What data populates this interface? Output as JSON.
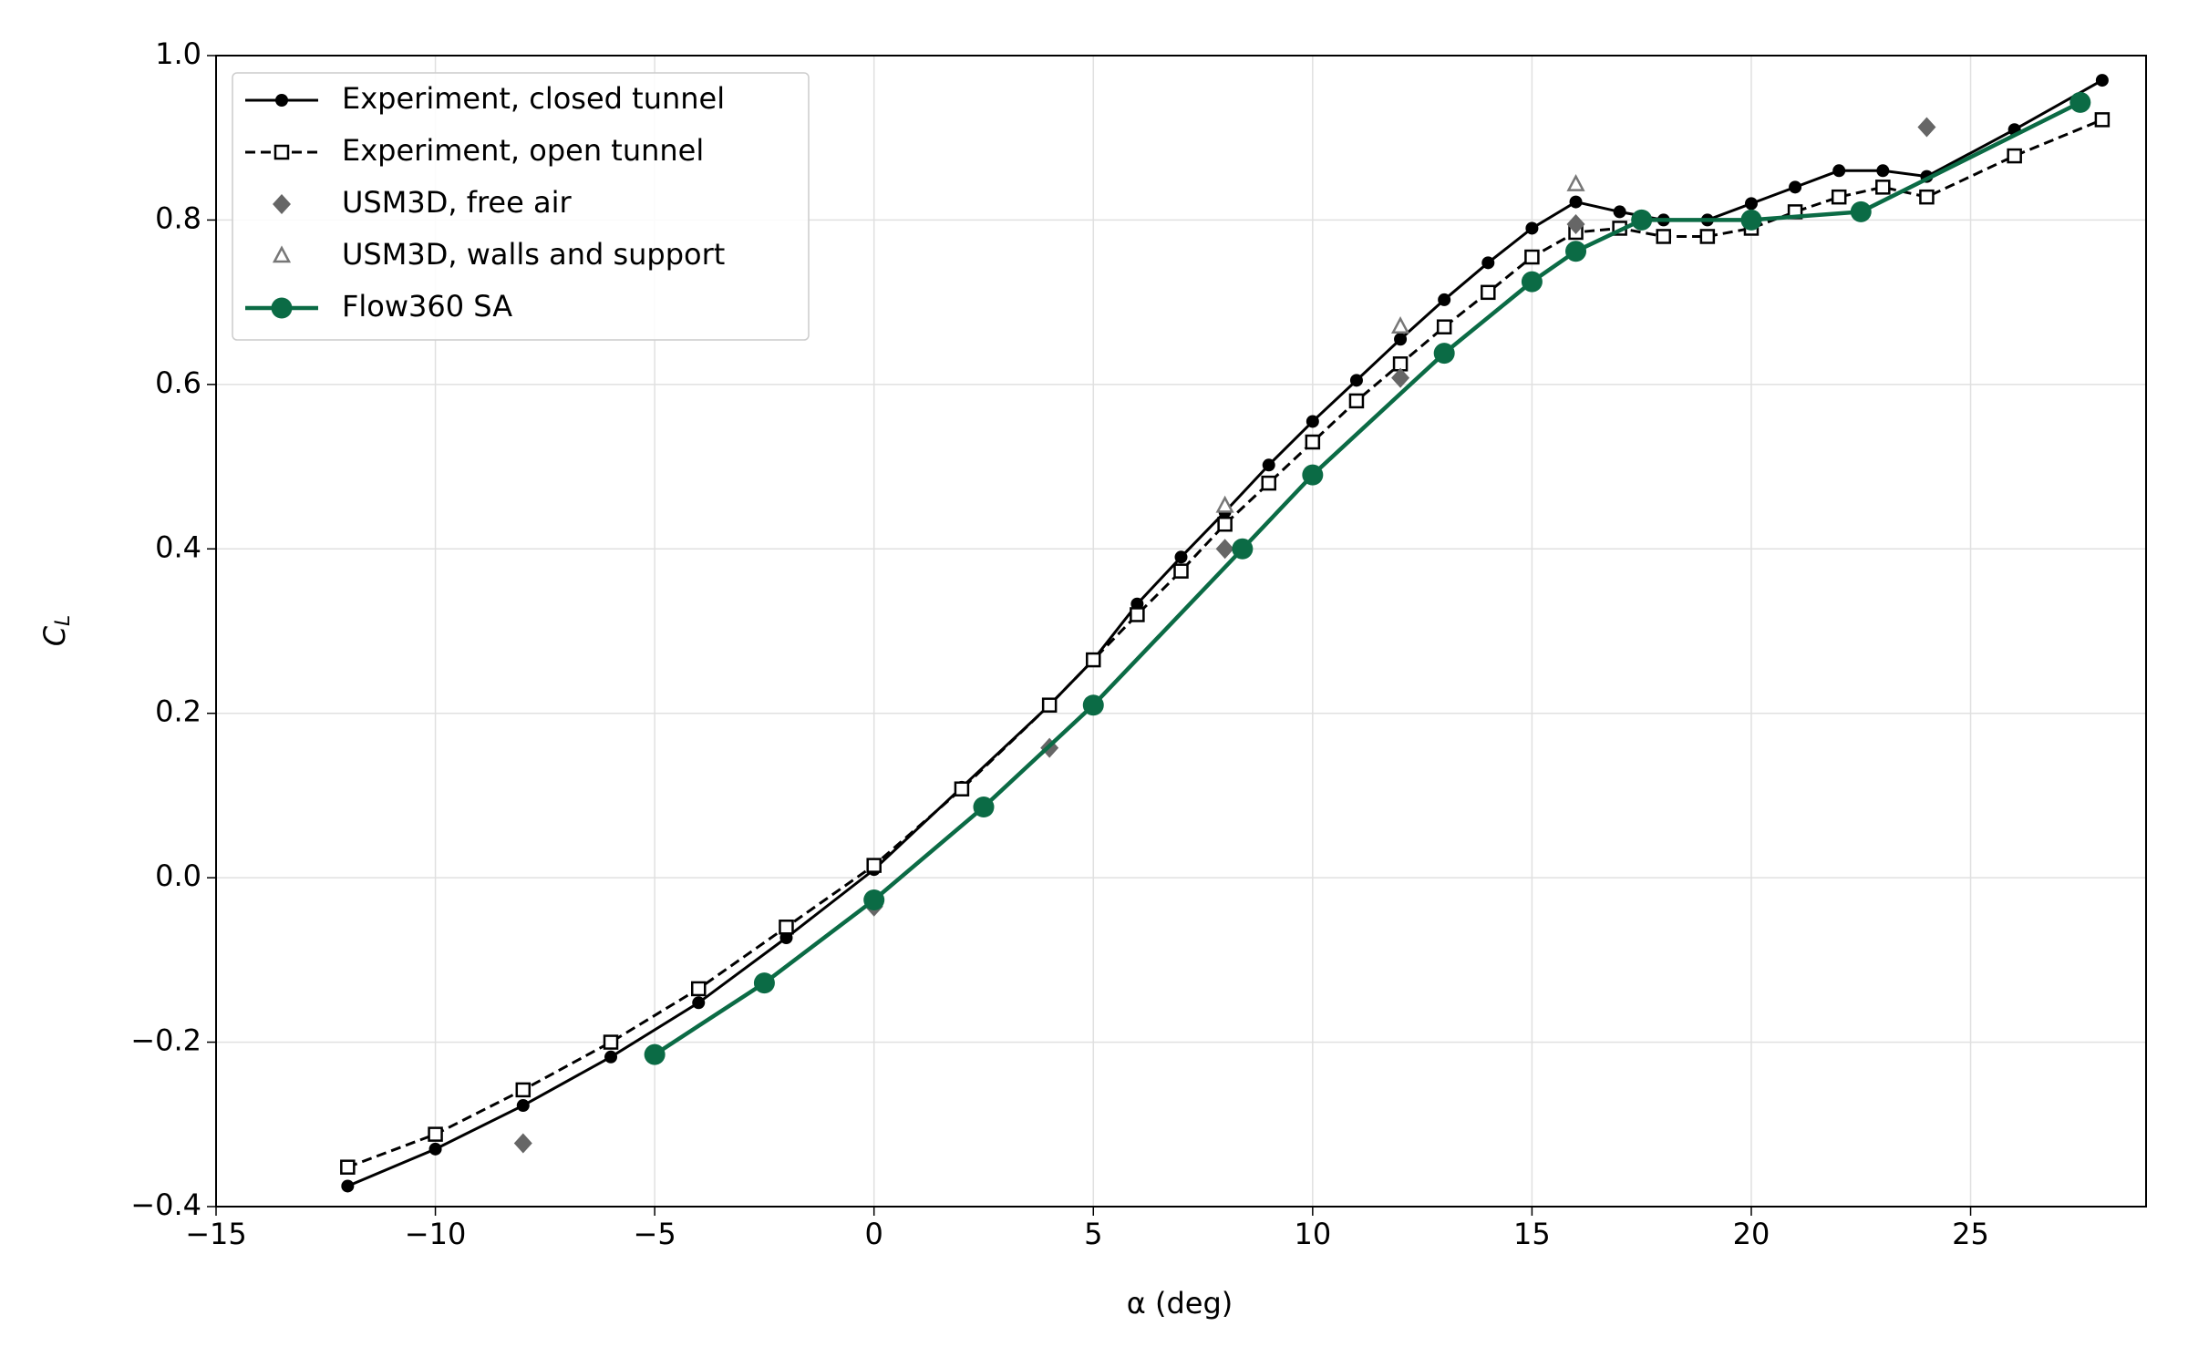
{
  "chart_data": {
    "type": "line",
    "xlabel": "α (deg)",
    "ylabel": "C",
    "ylabel_subscript": "L",
    "xlim": [
      -15,
      29
    ],
    "ylim": [
      -0.4,
      1.0
    ],
    "xticks": [
      {
        "value": -15,
        "label": "−15"
      },
      {
        "value": -10,
        "label": "−10"
      },
      {
        "value": -5,
        "label": "−5"
      },
      0,
      5,
      10,
      15,
      20,
      25
    ],
    "yticks": [
      {
        "value": -0.4,
        "label": "−0.4"
      },
      {
        "value": -0.2,
        "label": "−0.2"
      },
      {
        "value": 0,
        "label": "0.0"
      },
      0.2,
      0.4,
      0.6,
      0.8,
      {
        "value": 1.0,
        "label": "1.0"
      }
    ],
    "grid": true,
    "legend": "upper left",
    "series": [
      {
        "name": "Experiment, closed tunnel",
        "color": "#000000",
        "marker": "circle",
        "linestyle": "solid",
        "x": [
          -12,
          -10,
          -8,
          -6,
          -4,
          -2,
          0,
          2,
          4,
          5,
          6,
          7,
          8,
          9,
          10,
          11,
          12,
          13,
          14,
          15,
          16,
          17,
          18,
          19,
          20,
          21,
          22,
          23,
          24,
          26,
          28
        ],
        "values": [
          -0.375,
          -0.33,
          -0.277,
          -0.218,
          -0.152,
          -0.073,
          0.01,
          0.11,
          0.21,
          0.265,
          0.333,
          0.39,
          0.445,
          0.502,
          0.555,
          0.605,
          0.655,
          0.703,
          0.748,
          0.79,
          0.822,
          0.81,
          0.8,
          0.8,
          0.82,
          0.84,
          0.86,
          0.86,
          0.853,
          0.91,
          0.97
        ]
      },
      {
        "name": "Experiment, open tunnel",
        "color": "#000000",
        "marker": "square-open",
        "linestyle": "dashed",
        "x": [
          -12,
          -10,
          -8,
          -6,
          -4,
          -2,
          0,
          2,
          4,
          5,
          6,
          7,
          8,
          9,
          10,
          11,
          12,
          13,
          14,
          15,
          16,
          17,
          18,
          19,
          20,
          21,
          22,
          23,
          24,
          26,
          28
        ],
        "values": [
          -0.352,
          -0.312,
          -0.258,
          -0.2,
          -0.135,
          -0.06,
          0.015,
          0.108,
          0.21,
          0.265,
          0.32,
          0.373,
          0.43,
          0.48,
          0.53,
          0.58,
          0.625,
          0.67,
          0.712,
          0.755,
          0.785,
          0.79,
          0.78,
          0.78,
          0.79,
          0.81,
          0.828,
          0.84,
          0.828,
          0.878,
          0.922
        ]
      },
      {
        "name": "USM3D, free air",
        "color": "#666666",
        "marker": "diamond",
        "linestyle": "none",
        "x": [
          -8,
          0,
          4,
          8,
          12,
          16,
          24
        ],
        "values": [
          -0.323,
          -0.035,
          0.158,
          0.4,
          0.608,
          0.795,
          0.913
        ]
      },
      {
        "name": "USM3D, walls and support",
        "color": "#777777",
        "marker": "triangle-open",
        "linestyle": "none",
        "x": [
          8,
          12,
          16
        ],
        "values": [
          0.452,
          0.67,
          0.843
        ]
      },
      {
        "name": "Flow360 SA",
        "color": "#0b6b45",
        "marker": "circle-large",
        "linestyle": "solid-thick",
        "x": [
          -5,
          -2.5,
          0,
          2.5,
          5,
          8.4,
          10,
          13,
          15,
          16,
          17.5,
          20,
          22.5,
          27.5
        ],
        "values": [
          -0.215,
          -0.128,
          -0.027,
          0.086,
          0.21,
          0.4,
          0.49,
          0.638,
          0.725,
          0.762,
          0.8,
          0.8,
          0.81,
          0.943
        ]
      }
    ]
  }
}
